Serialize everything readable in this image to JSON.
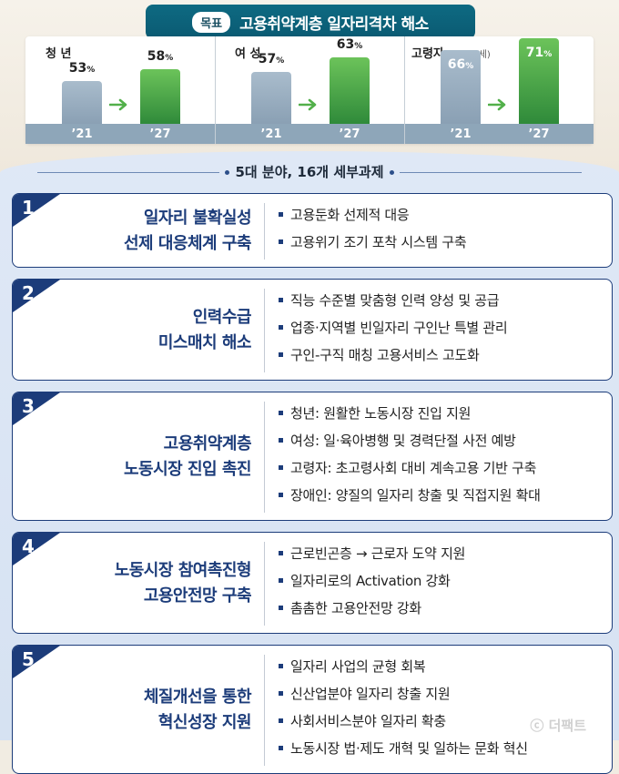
{
  "title": {
    "badge": "목표",
    "text": "고용취약계층 일자리격차 해소"
  },
  "groups": [
    {
      "label": "청 년",
      "sub": "",
      "bars": [
        {
          "year": "’21",
          "value": "53",
          "unit": "%"
        },
        {
          "year": "’27",
          "value": "58",
          "unit": "%"
        }
      ]
    },
    {
      "label": "여 성",
      "sub": "",
      "bars": [
        {
          "year": "’21",
          "value": "57",
          "unit": "%"
        },
        {
          "year": "’27",
          "value": "63",
          "unit": "%"
        }
      ]
    },
    {
      "label": "고령자",
      "sub": "(55~64세)",
      "bars": [
        {
          "year": "’21",
          "value": "66",
          "unit": "%"
        },
        {
          "year": "’27",
          "value": "71",
          "unit": "%"
        }
      ]
    }
  ],
  "chart_data": {
    "type": "bar",
    "categories": [
      "청 년",
      "여 성",
      "고령자"
    ],
    "series": [
      {
        "name": "’21",
        "values": [
          53,
          57,
          66
        ]
      },
      {
        "name": "’27",
        "values": [
          58,
          63,
          71
        ]
      }
    ]
  },
  "subtitle": "5대 분야, 16개 세부과제",
  "tasks": [
    {
      "num": "1",
      "head": [
        "일자리 불확실성",
        "선제 대응체계 구축"
      ],
      "items": [
        "고용둔화 선제적 대응",
        "고용위기 조기 포착 시스템 구축"
      ]
    },
    {
      "num": "2",
      "head": [
        "인력수급",
        "미스매치 해소"
      ],
      "items": [
        "직능 수준별 맞춤형 인력 양성 및 공급",
        "업종·지역별 빈일자리 구인난 특별 관리",
        "구인-구직 매칭 고용서비스 고도화"
      ]
    },
    {
      "num": "3",
      "head": [
        "고용취약계층",
        "노동시장 진입 촉진"
      ],
      "items": [
        "청년: 원활한 노동시장 진입 지원",
        "여성: 일·육아병행 및 경력단절 사전 예방",
        "고령자: 초고령사회 대비 계속고용 기반 구축",
        "장애인: 양질의 일자리 창출 및 직접지원 확대"
      ]
    },
    {
      "num": "4",
      "head": [
        "노동시장 참여촉진형",
        "고용안전망 구축"
      ],
      "items": [
        "근로빈곤층 → 근로자 도약 지원",
        "일자리로의 Activation 강화",
        "촘촘한 고용안전망 강화"
      ]
    },
    {
      "num": "5",
      "head": [
        "체질개선을 통한",
        "혁신성장 지원"
      ],
      "items": [
        "일자리 사업의 균형 회복",
        "신산업분야 일자리 창출 지원",
        "사회서비스분야 일자리 확충",
        "노동시장 법·제도 개혁 및 일하는 문화 혁신"
      ]
    }
  ],
  "watermark": "ⓒ 더팩트"
}
